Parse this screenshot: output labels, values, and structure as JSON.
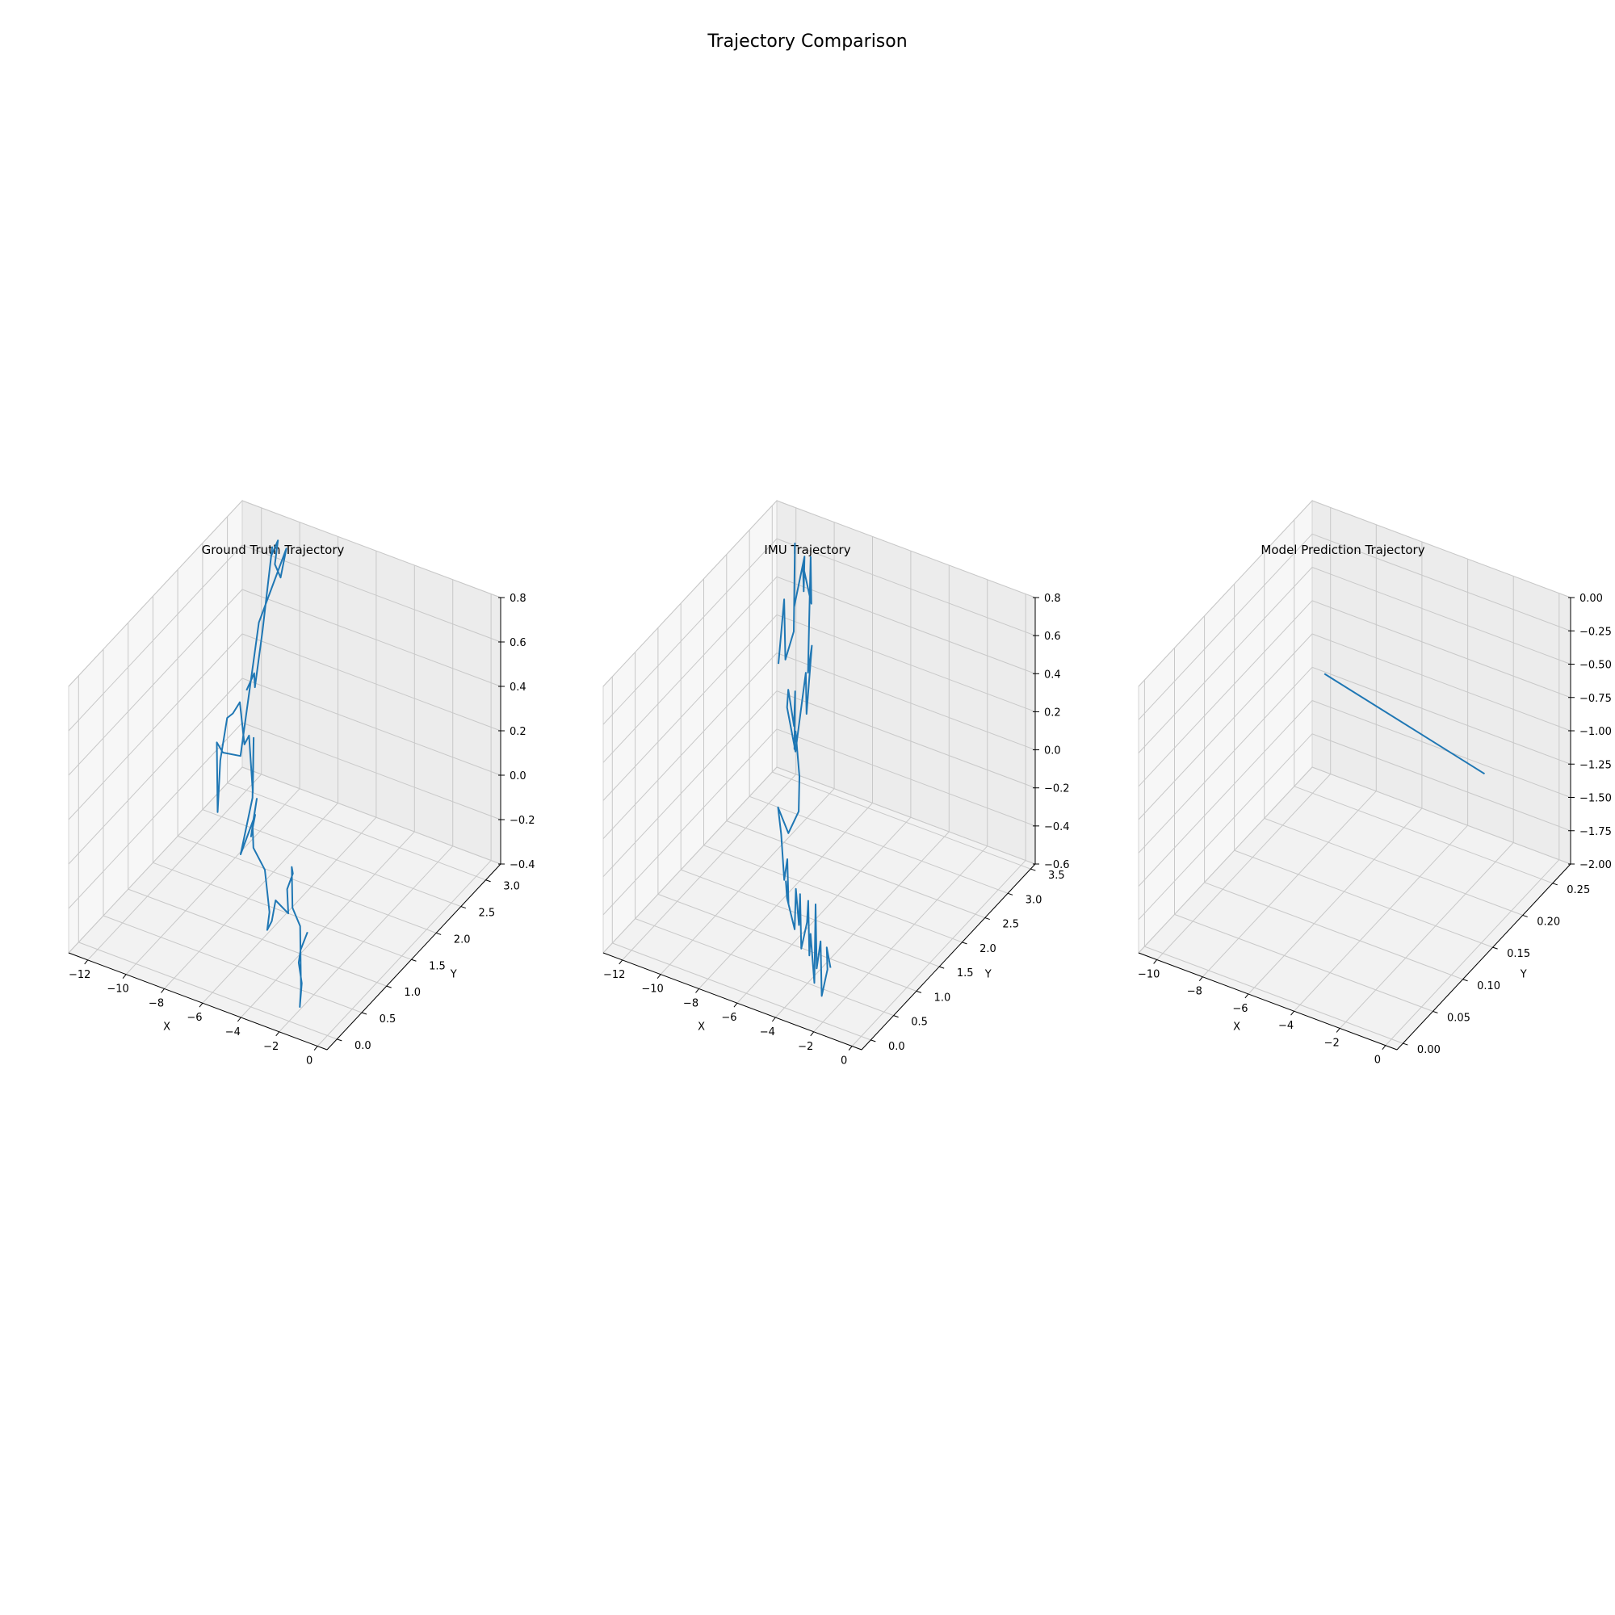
{
  "chart_data": {
    "title": "Trajectory Comparison",
    "type": "line",
    "line_color": "#1f77b4",
    "pane_colors": {
      "floor": "#f2f2f2",
      "left_wall": "#f7f7f7",
      "back_wall": "#ececec",
      "grid": "#c8c8c8"
    },
    "grid": true,
    "subplots": [
      {
        "title": "Ground Truth Trajectory",
        "xlabel": "X",
        "ylabel": "Y",
        "zlabel": "",
        "xlim": [
          -13,
          0.5
        ],
        "ylim": [
          -0.2,
          3.3
        ],
        "zlim": [
          -0.4,
          0.8
        ],
        "xticks": [
          -12,
          -10,
          -8,
          -6,
          -4,
          -2,
          0
        ],
        "xtick_labels": [
          "−12",
          "−10",
          "−8",
          "−6",
          "−4",
          "−2",
          "0"
        ],
        "yticks": [
          0.0,
          0.5,
          1.0,
          1.5,
          2.0,
          2.5,
          3.0
        ],
        "ytick_labels": [
          "0.0",
          "0.5",
          "1.0",
          "1.5",
          "2.0",
          "2.5",
          "3.0"
        ],
        "zticks": [
          -0.4,
          -0.2,
          0.0,
          0.2,
          0.4,
          0.6,
          0.8
        ],
        "ztick_labels": [
          "−0.4",
          "−0.2",
          "0.0",
          "0.2",
          "0.4",
          "0.6",
          "0.8"
        ],
        "x": [
          -12.0,
          -11.6,
          -11.3,
          -10.9,
          -10.4,
          -10.2,
          -10.1,
          -10.0,
          -9.7,
          -9.4,
          -9.8,
          -10.5,
          -10.9,
          -10.7,
          -10.4,
          -10.0,
          -9.9,
          -9.6,
          -9.5,
          -9.0,
          -8.5,
          -8.3,
          -8.0,
          -7.8,
          -7.9,
          -7.4,
          -7.1,
          -6.8,
          -6.5,
          -6.2,
          -5.6,
          -5.1,
          -4.7,
          -4.2,
          -4.0,
          -3.6,
          -3.4,
          -3.1,
          -2.9,
          -2.6,
          -2.2,
          -1.9,
          -1.7,
          -1.6,
          -1.5,
          -1.4,
          -1.3
        ],
        "y": [
          3.0,
          3.0,
          2.9,
          2.9,
          2.9,
          2.8,
          2.9,
          2.8,
          2.8,
          2.8,
          2.4,
          2.3,
          2.1,
          1.9,
          1.8,
          1.7,
          1.8,
          1.8,
          1.9,
          1.8,
          1.7,
          1.7,
          1.6,
          1.5,
          1.3,
          1.4,
          1.2,
          1.2,
          1.0,
          0.9,
          0.9,
          0.8,
          0.6,
          0.5,
          0.5,
          0.6,
          0.5,
          0.5,
          0.4,
          0.3,
          0.3,
          0.2,
          0.1,
          0.1,
          0.0,
          0.0,
          0.1
        ],
        "z": [
          0.05,
          0.14,
          0.11,
          0.38,
          0.77,
          0.76,
          0.81,
          0.73,
          0.68,
          0.82,
          0.57,
          -0.03,
          0.02,
          0.12,
          -0.16,
          0.11,
          0.28,
          0.31,
          0.34,
          0.19,
          0.27,
          0.02,
          0.3,
          0.06,
          -0.15,
          0.02,
          -0.02,
          0.16,
          0.1,
          0.03,
          -0.05,
          -0.2,
          -0.22,
          -0.14,
          -0.04,
          -0.11,
          0.03,
          0.11,
          0.17,
          0.02,
          -0.05,
          -0.29,
          -0.35,
          -0.24,
          -0.12,
          -0.06,
          0.0
        ]
      },
      {
        "title": "IMU Trajectory",
        "xlabel": "X",
        "ylabel": "Y",
        "zlabel": "",
        "xlim": [
          -13,
          0.5
        ],
        "ylim": [
          -0.2,
          3.6
        ],
        "zlim": [
          -0.6,
          0.8
        ],
        "xticks": [
          -12,
          -10,
          -8,
          -6,
          -4,
          -2,
          0
        ],
        "xtick_labels": [
          "−12",
          "−10",
          "−8",
          "−6",
          "−4",
          "−2",
          "0"
        ],
        "yticks": [
          0.0,
          0.5,
          1.0,
          1.5,
          2.0,
          2.5,
          3.0,
          3.5
        ],
        "ytick_labels": [
          "0.0",
          "0.5",
          "1.0",
          "1.5",
          "2.0",
          "2.5",
          "3.0",
          "3.5"
        ],
        "zticks": [
          -0.6,
          -0.4,
          -0.2,
          0.0,
          0.2,
          0.4,
          0.6,
          0.8
        ],
        "ztick_labels": [
          "−0.6",
          "−0.4",
          "−0.2",
          "0.0",
          "0.2",
          "0.4",
          "0.6",
          "0.8"
        ],
        "x": [
          -12.2,
          -11.9,
          -11.6,
          -11.4,
          -11.1,
          -10.9,
          -10.6,
          -10.4,
          -10.2,
          -10.0,
          -9.8,
          -9.7,
          -9.5,
          -9.3,
          -9.1,
          -9.4,
          -9.6,
          -9.3,
          -9.0,
          -8.7,
          -8.5,
          -8.2,
          -8.0,
          -7.8,
          -8.1,
          -8.4,
          -8.0,
          -7.6,
          -7.2,
          -6.9,
          -6.8,
          -6.5,
          -6.1,
          -5.8,
          -5.4,
          -5.1,
          -4.8,
          -4.5,
          -4.2,
          -3.9,
          -3.6,
          -3.4,
          -3.1,
          -2.8,
          -2.6,
          -2.3,
          -2.0,
          -1.8,
          -1.6
        ],
        "y": [
          3.3,
          3.3,
          3.2,
          3.3,
          3.2,
          3.1,
          3.2,
          3.1,
          3.0,
          3.1,
          3.0,
          2.9,
          2.9,
          2.7,
          2.6,
          2.5,
          2.4,
          2.3,
          2.3,
          2.2,
          2.1,
          2.0,
          2.0,
          1.9,
          1.8,
          1.7,
          1.6,
          1.5,
          1.4,
          1.3,
          1.2,
          1.1,
          1.1,
          1.0,
          0.9,
          0.8,
          0.7,
          0.7,
          0.6,
          0.5,
          0.4,
          0.4,
          0.3,
          0.2,
          0.2,
          0.1,
          0.1,
          0.0,
          0.0
        ],
        "z": [
          0.05,
          0.4,
          0.12,
          0.25,
          0.75,
          0.45,
          0.7,
          0.55,
          0.72,
          0.5,
          0.78,
          0.2,
          0.35,
          0.05,
          0.3,
          -0.1,
          0.15,
          0.28,
          0.1,
          0.32,
          0.05,
          0.18,
          -0.05,
          -0.2,
          -0.3,
          -0.15,
          -0.25,
          -0.45,
          -0.3,
          -0.5,
          -0.35,
          -0.4,
          -0.55,
          -0.3,
          -0.45,
          -0.25,
          -0.5,
          -0.35,
          -0.2,
          -0.45,
          -0.3,
          -0.55,
          -0.1,
          -0.4,
          -0.25,
          -0.5,
          -0.35,
          -0.2,
          -0.3
        ]
      },
      {
        "title": "Model Prediction Trajectory",
        "xlabel": "X",
        "ylabel": "Y",
        "zlabel": "",
        "xlim": [
          -10.8,
          0.5
        ],
        "ylim": [
          -0.01,
          0.28
        ],
        "zlim": [
          -2.0,
          0.0
        ],
        "xticks": [
          -10,
          -8,
          -6,
          -4,
          -2,
          0
        ],
        "xtick_labels": [
          "−10",
          "−8",
          "−6",
          "−4",
          "−2",
          "0"
        ],
        "yticks": [
          0.0,
          0.05,
          0.1,
          0.15,
          0.2,
          0.25
        ],
        "ytick_labels": [
          "0.00",
          "0.05",
          "0.10",
          "0.15",
          "0.20",
          "0.25"
        ],
        "zticks": [
          -2.0,
          -1.75,
          -1.5,
          -1.25,
          -1.0,
          -0.75,
          -0.5,
          -0.25,
          0.0
        ],
        "ztick_labels": [
          "−2.00",
          "−1.75",
          "−1.50",
          "−1.25",
          "−1.00",
          "−0.75",
          "−0.50",
          "−0.25",
          "0.00"
        ],
        "x": [
          -10.0,
          -3.0
        ],
        "y": [
          0.27,
          0.27
        ],
        "z": [
          -1.2,
          -1.5
        ]
      }
    ]
  }
}
